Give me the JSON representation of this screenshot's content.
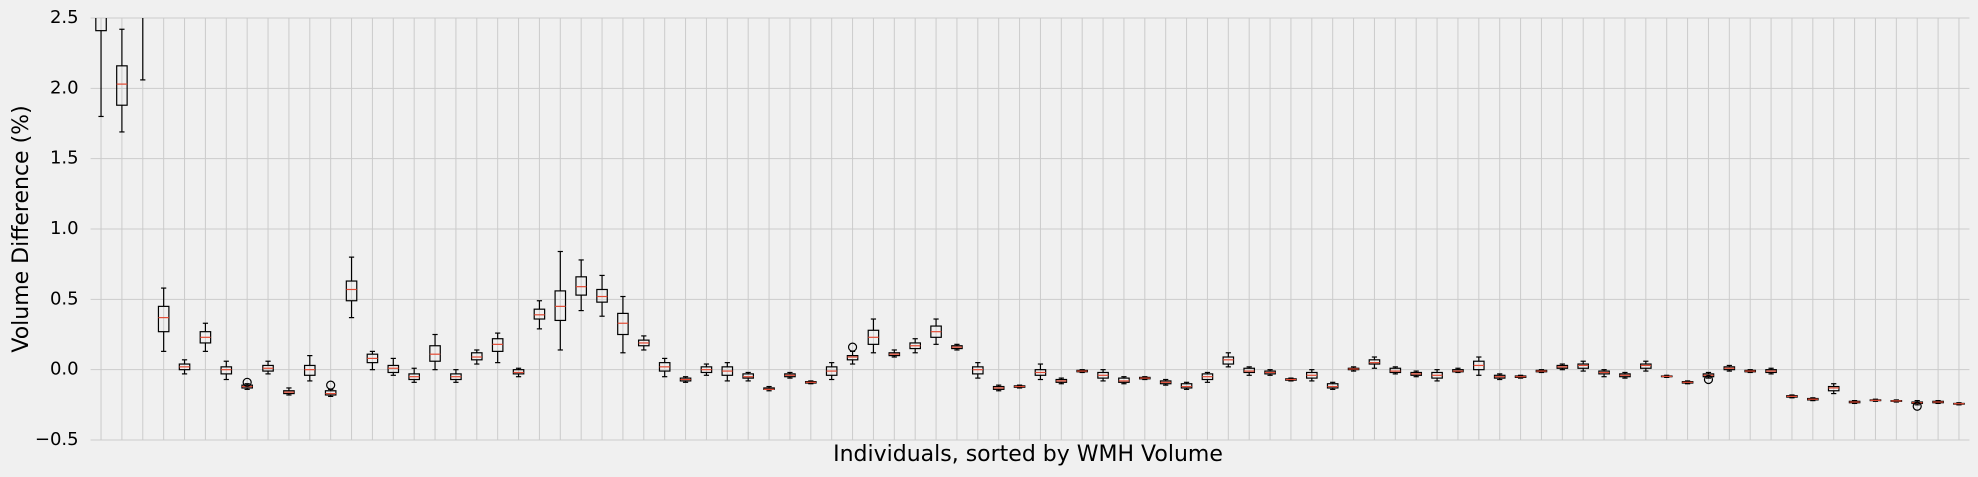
{
  "chart_data": {
    "type": "boxplot",
    "xlabel": "Individuals, sorted by WMH Volume",
    "ylabel": "Volume Difference (%)",
    "ylim": [
      -0.5,
      2.5
    ],
    "yticks": [
      {
        "value": -0.5,
        "label": "−0.5"
      },
      {
        "value": 0.0,
        "label": "0.0"
      },
      {
        "value": 0.5,
        "label": "0.5"
      },
      {
        "value": 1.0,
        "label": "1.0"
      },
      {
        "value": 1.5,
        "label": "1.5"
      },
      {
        "value": 2.0,
        "label": "2.0"
      },
      {
        "value": 2.5,
        "label": "2.5"
      }
    ],
    "grid": true,
    "box_color": "#000000",
    "median_color": "#e24a33",
    "categories": [
      null,
      null,
      null,
      null,
      null,
      null,
      null,
      null,
      null,
      null,
      null,
      null,
      null,
      null,
      null,
      null,
      null,
      null,
      null,
      null,
      null,
      null,
      null,
      null,
      null,
      null,
      null,
      null,
      null,
      null,
      null,
      null,
      null,
      null,
      null,
      null,
      null,
      null,
      null,
      null,
      null,
      null,
      null,
      null,
      null,
      null,
      null,
      null,
      null,
      null,
      null,
      null,
      null,
      null,
      null,
      null,
      null,
      null,
      null,
      null,
      null,
      null,
      null,
      null,
      null,
      null,
      null,
      null,
      null,
      null,
      null,
      null,
      null,
      null,
      null,
      null,
      null,
      null,
      null,
      null,
      null,
      null,
      null,
      null,
      null,
      null,
      null,
      null,
      null,
      null
    ],
    "boxes": [
      {
        "stats": [
          1.8,
          2.41,
          2.6,
          3.0,
          3.5
        ]
      },
      {
        "stats": [
          1.69,
          1.88,
          2.03,
          2.16,
          2.42
        ]
      },
      {
        "stats": [
          2.06,
          2.7,
          2.9,
          3.1,
          3.4
        ]
      },
      {
        "stats": [
          0.13,
          0.27,
          0.37,
          0.45,
          0.58
        ]
      },
      {
        "stats": [
          -0.03,
          0.0,
          0.02,
          0.04,
          0.07
        ]
      },
      {
        "stats": [
          0.13,
          0.19,
          0.23,
          0.27,
          0.33
        ]
      },
      {
        "stats": [
          -0.07,
          -0.03,
          0.0,
          0.02,
          0.06
        ]
      },
      {
        "stats": [
          -0.14,
          -0.13,
          -0.12,
          -0.11,
          -0.1
        ],
        "fliers": [
          -0.09
        ]
      },
      {
        "stats": [
          -0.03,
          -0.01,
          0.01,
          0.03,
          0.06
        ]
      },
      {
        "stats": [
          -0.18,
          -0.17,
          -0.16,
          -0.15,
          -0.13
        ]
      },
      {
        "stats": [
          -0.08,
          -0.04,
          0.0,
          0.03,
          0.1
        ]
      },
      {
        "stats": [
          -0.19,
          -0.18,
          -0.17,
          -0.15,
          -0.14
        ],
        "fliers": [
          -0.11
        ]
      },
      {
        "stats": [
          0.37,
          0.49,
          0.57,
          0.63,
          0.8
        ]
      },
      {
        "stats": [
          0.0,
          0.05,
          0.08,
          0.11,
          0.13
        ]
      },
      {
        "stats": [
          -0.04,
          -0.02,
          0.01,
          0.03,
          0.08
        ]
      },
      {
        "stats": [
          -0.09,
          -0.07,
          -0.05,
          -0.03,
          0.01
        ]
      },
      {
        "stats": [
          0.0,
          0.06,
          0.11,
          0.17,
          0.25
        ]
      },
      {
        "stats": [
          -0.09,
          -0.07,
          -0.05,
          -0.03,
          0.0
        ]
      },
      {
        "stats": [
          0.04,
          0.07,
          0.09,
          0.12,
          0.14
        ]
      },
      {
        "stats": [
          0.05,
          0.13,
          0.18,
          0.22,
          0.26
        ]
      },
      {
        "stats": [
          -0.05,
          -0.03,
          -0.02,
          0.0,
          0.01
        ]
      },
      {
        "stats": [
          0.29,
          0.36,
          0.39,
          0.43,
          0.49
        ]
      },
      {
        "stats": [
          0.14,
          0.35,
          0.45,
          0.56,
          0.84
        ]
      },
      {
        "stats": [
          0.42,
          0.53,
          0.59,
          0.66,
          0.78
        ]
      },
      {
        "stats": [
          0.38,
          0.48,
          0.52,
          0.57,
          0.67
        ]
      },
      {
        "stats": [
          0.12,
          0.25,
          0.33,
          0.4,
          0.52
        ]
      },
      {
        "stats": [
          0.14,
          0.17,
          0.19,
          0.21,
          0.24
        ]
      },
      {
        "stats": [
          -0.05,
          -0.01,
          0.02,
          0.05,
          0.08
        ]
      },
      {
        "stats": [
          -0.09,
          -0.08,
          -0.07,
          -0.06,
          -0.05
        ]
      },
      {
        "stats": [
          -0.04,
          -0.02,
          0.0,
          0.02,
          0.04
        ]
      },
      {
        "stats": [
          -0.08,
          -0.04,
          -0.01,
          0.02,
          0.05
        ]
      },
      {
        "stats": [
          -0.08,
          -0.06,
          -0.05,
          -0.03,
          -0.02
        ]
      },
      {
        "stats": [
          -0.15,
          -0.14,
          -0.14,
          -0.13,
          -0.12
        ]
      },
      {
        "stats": [
          -0.06,
          -0.05,
          -0.04,
          -0.03,
          -0.02
        ]
      },
      {
        "stats": [
          -0.1,
          -0.095,
          -0.09,
          -0.085,
          -0.08
        ]
      },
      {
        "stats": [
          -0.07,
          -0.04,
          -0.01,
          0.02,
          0.05
        ]
      },
      {
        "stats": [
          0.04,
          0.07,
          0.09,
          0.1,
          0.13
        ],
        "fliers": [
          0.16
        ]
      },
      {
        "stats": [
          0.12,
          0.18,
          0.23,
          0.28,
          0.36
        ]
      },
      {
        "stats": [
          0.09,
          0.1,
          0.11,
          0.12,
          0.14
        ]
      },
      {
        "stats": [
          0.12,
          0.15,
          0.17,
          0.19,
          0.22
        ]
      },
      {
        "stats": [
          0.18,
          0.23,
          0.27,
          0.31,
          0.36
        ]
      },
      {
        "stats": [
          0.14,
          0.15,
          0.16,
          0.17,
          0.18
        ]
      },
      {
        "stats": [
          -0.06,
          -0.03,
          0.0,
          0.02,
          0.05
        ]
      },
      {
        "stats": [
          -0.15,
          -0.14,
          -0.13,
          -0.12,
          -0.11
        ]
      },
      {
        "stats": [
          -0.13,
          -0.125,
          -0.12,
          -0.115,
          -0.11
        ]
      },
      {
        "stats": [
          -0.07,
          -0.04,
          -0.02,
          0.0,
          0.04
        ]
      },
      {
        "stats": [
          -0.1,
          -0.09,
          -0.08,
          -0.07,
          -0.06
        ]
      },
      {
        "stats": [
          -0.02,
          -0.015,
          -0.01,
          -0.005,
          0.0
        ]
      },
      {
        "stats": [
          -0.08,
          -0.06,
          -0.04,
          -0.02,
          0.0
        ]
      },
      {
        "stats": [
          -0.1,
          -0.09,
          -0.08,
          -0.06,
          -0.05
        ]
      },
      {
        "stats": [
          -0.07,
          -0.065,
          -0.06,
          -0.055,
          -0.05
        ]
      },
      {
        "stats": [
          -0.11,
          -0.1,
          -0.09,
          -0.08,
          -0.07
        ]
      },
      {
        "stats": [
          -0.14,
          -0.13,
          -0.12,
          -0.1,
          -0.09
        ]
      },
      {
        "stats": [
          -0.09,
          -0.07,
          -0.05,
          -0.03,
          -0.02
        ]
      },
      {
        "stats": [
          0.02,
          0.04,
          0.07,
          0.09,
          0.12
        ]
      },
      {
        "stats": [
          -0.04,
          -0.02,
          -0.01,
          0.01,
          0.02
        ]
      },
      {
        "stats": [
          -0.04,
          -0.03,
          -0.02,
          -0.01,
          0.0
        ]
      },
      {
        "stats": [
          -0.08,
          -0.075,
          -0.07,
          -0.065,
          -0.06
        ]
      },
      {
        "stats": [
          -0.08,
          -0.06,
          -0.04,
          -0.02,
          0.0
        ]
      },
      {
        "stats": [
          -0.14,
          -0.13,
          -0.12,
          -0.1,
          -0.09
        ]
      },
      {
        "stats": [
          -0.01,
          0.0,
          0.005,
          0.01,
          0.02
        ]
      },
      {
        "stats": [
          0.01,
          0.04,
          0.05,
          0.07,
          0.09
        ]
      },
      {
        "stats": [
          -0.03,
          -0.02,
          -0.01,
          0.01,
          0.02
        ]
      },
      {
        "stats": [
          -0.05,
          -0.04,
          -0.03,
          -0.02,
          -0.01
        ]
      },
      {
        "stats": [
          -0.08,
          -0.06,
          -0.04,
          -0.02,
          0.0
        ]
      },
      {
        "stats": [
          -0.02,
          -0.015,
          -0.01,
          0.0,
          0.01
        ]
      },
      {
        "stats": [
          -0.04,
          0.0,
          0.03,
          0.06,
          0.09
        ]
      },
      {
        "stats": [
          -0.07,
          -0.06,
          -0.05,
          -0.04,
          -0.03
        ]
      },
      {
        "stats": [
          -0.06,
          -0.055,
          -0.05,
          -0.045,
          -0.04
        ]
      },
      {
        "stats": [
          -0.02,
          -0.015,
          -0.01,
          -0.005,
          0.0
        ]
      },
      {
        "stats": [
          0.0,
          0.01,
          0.02,
          0.03,
          0.04
        ]
      },
      {
        "stats": [
          -0.01,
          0.01,
          0.03,
          0.04,
          0.06
        ]
      },
      {
        "stats": [
          -0.05,
          -0.03,
          -0.02,
          -0.01,
          0.0
        ]
      },
      {
        "stats": [
          -0.06,
          -0.05,
          -0.04,
          -0.03,
          -0.02
        ]
      },
      {
        "stats": [
          -0.01,
          0.01,
          0.03,
          0.04,
          0.06
        ]
      },
      {
        "stats": [
          -0.055,
          -0.05,
          -0.048,
          -0.045,
          -0.04
        ]
      },
      {
        "stats": [
          -0.1,
          -0.095,
          -0.09,
          -0.085,
          -0.08
        ]
      },
      {
        "stats": [
          -0.06,
          -0.05,
          -0.04,
          -0.03,
          -0.02
        ],
        "fliers": [
          -0.07
        ]
      },
      {
        "stats": [
          -0.01,
          0.0,
          0.01,
          0.02,
          0.03
        ]
      },
      {
        "stats": [
          -0.02,
          -0.015,
          -0.01,
          -0.005,
          0.0
        ]
      },
      {
        "stats": [
          -0.03,
          -0.02,
          -0.01,
          0.0,
          0.01
        ]
      },
      {
        "stats": [
          -0.2,
          -0.195,
          -0.19,
          -0.185,
          -0.18
        ]
      },
      {
        "stats": [
          -0.22,
          -0.215,
          -0.21,
          -0.205,
          -0.2
        ]
      },
      {
        "stats": [
          -0.17,
          -0.15,
          -0.13,
          -0.12,
          -0.1
        ]
      },
      {
        "stats": [
          -0.24,
          -0.235,
          -0.23,
          -0.225,
          -0.22
        ]
      },
      {
        "stats": [
          -0.225,
          -0.22,
          -0.218,
          -0.215,
          -0.21
        ]
      },
      {
        "stats": [
          -0.23,
          -0.225,
          -0.222,
          -0.22,
          -0.215
        ]
      },
      {
        "stats": [
          -0.25,
          -0.24,
          -0.235,
          -0.23,
          -0.22
        ],
        "fliers": [
          -0.26
        ]
      },
      {
        "stats": [
          -0.24,
          -0.235,
          -0.23,
          -0.225,
          -0.22
        ]
      },
      {
        "stats": [
          -0.25,
          -0.245,
          -0.242,
          -0.24,
          -0.235
        ]
      }
    ]
  }
}
